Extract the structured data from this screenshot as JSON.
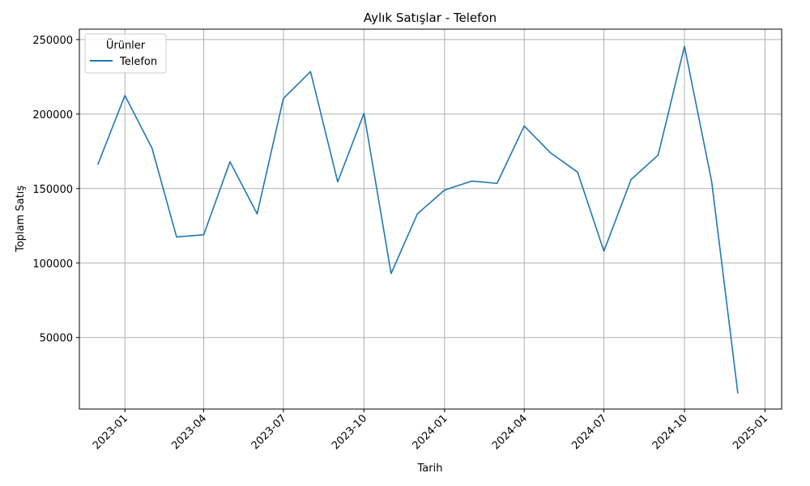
{
  "chart_data": {
    "type": "line",
    "title": "Aylık Satışlar - Telefon",
    "xlabel": "Tarih",
    "ylabel": "Toplam Satış",
    "x_ticks": [
      "2023-01",
      "2023-04",
      "2023-07",
      "2023-10",
      "2024-01",
      "2024-04",
      "2024-07",
      "2024-10",
      "2025-01"
    ],
    "y_ticks": [
      50000,
      100000,
      150000,
      200000,
      250000
    ],
    "y_tick_labels": [
      "50000",
      "100000",
      "150000",
      "200000",
      "250000"
    ],
    "xlim": [
      "2022-11-10",
      "2025-01-20"
    ],
    "ylim": [
      2000,
      257000
    ],
    "grid": true,
    "legend": {
      "title": "Ürünler",
      "placement": "top-left"
    },
    "series": [
      {
        "name": "Telefon",
        "color": "#1f77b4",
        "x": [
          "2022-12-01",
          "2023-01-01",
          "2023-02-01",
          "2023-03-01",
          "2023-04-01",
          "2023-05-01",
          "2023-06-01",
          "2023-07-01",
          "2023-08-01",
          "2023-09-01",
          "2023-10-01",
          "2023-11-01",
          "2023-12-01",
          "2024-01-01",
          "2024-02-01",
          "2024-03-01",
          "2024-04-01",
          "2024-05-01",
          "2024-06-01",
          "2024-07-01",
          "2024-08-01",
          "2024-09-01",
          "2024-10-01",
          "2024-11-01",
          "2024-12-01"
        ],
        "y": [
          166000,
          212500,
          177000,
          117500,
          119000,
          168000,
          133000,
          210500,
          228500,
          154500,
          200500,
          93000,
          133000,
          149000,
          155000,
          153500,
          192000,
          174000,
          161000,
          108000,
          156000,
          172500,
          245500,
          155000,
          12500
        ]
      }
    ]
  }
}
